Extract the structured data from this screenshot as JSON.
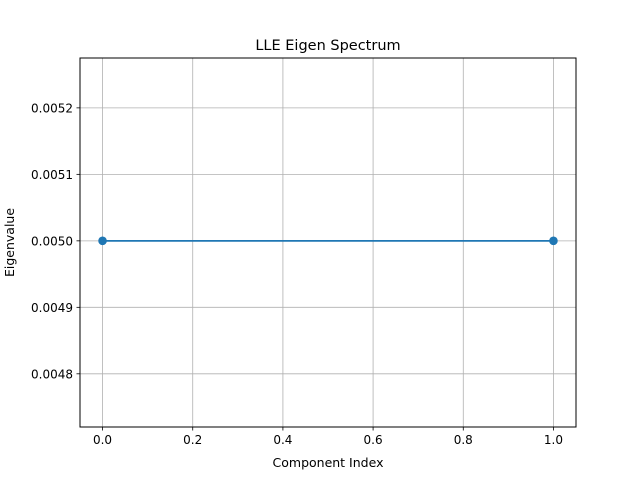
{
  "chart_data": {
    "type": "line",
    "title": "LLE Eigen Spectrum",
    "xlabel": "Component Index",
    "ylabel": "Eigenvalue",
    "xlim": [
      -0.05,
      1.05
    ],
    "ylim": [
      0.00472,
      0.005275
    ],
    "xticks": [
      0.0,
      0.2,
      0.4,
      0.6,
      0.8,
      1.0
    ],
    "xtick_labels": [
      "0.0",
      "0.2",
      "0.4",
      "0.6",
      "0.8",
      "1.0"
    ],
    "yticks": [
      0.0048,
      0.0049,
      0.005,
      0.0051,
      0.0052
    ],
    "ytick_labels": [
      "0.0048",
      "0.0049",
      "0.0050",
      "0.0051",
      "0.0052"
    ],
    "grid": true,
    "series": [
      {
        "x": [
          0,
          1
        ],
        "y": [
          0.005,
          0.005
        ],
        "marker": "o",
        "color": "#1f77b4"
      }
    ]
  }
}
